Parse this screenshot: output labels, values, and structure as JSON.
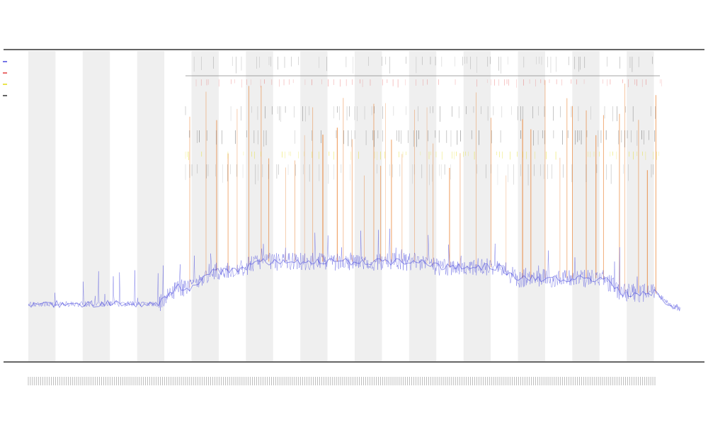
{
  "chart_data": {
    "type": "line",
    "title": "",
    "subtitle_lines": [
      "",
      ""
    ],
    "xlabel": "",
    "ylabel": "",
    "grid": false,
    "legend_position": "left",
    "shaded_bands": 12,
    "x_tick_count": 300,
    "colors": {
      "band": "#efefef",
      "primary_series": "#3a3adb",
      "event_lines": "#e8741c",
      "event_ticks_red": "#e03030",
      "event_ticks_yellow": "#e0d800",
      "event_ticks_black": "#222222",
      "axis": "#333333"
    },
    "series": [
      {
        "name": "",
        "kind": "profile",
        "segments": [
          {
            "from": 0,
            "to": 20,
            "level": 0.08
          },
          {
            "from": 20,
            "to": 25,
            "level": 0.17
          },
          {
            "from": 25,
            "to": 32,
            "level": 0.26
          },
          {
            "from": 32,
            "to": 60,
            "level": 0.31
          },
          {
            "from": 60,
            "to": 72,
            "level": 0.28
          },
          {
            "from": 72,
            "to": 88,
            "level": 0.22
          },
          {
            "from": 88,
            "to": 96,
            "level": 0.14
          },
          {
            "from": 96,
            "to": 100,
            "level": 0.06
          }
        ]
      }
    ]
  },
  "legend": {
    "items": [
      {
        "label": "",
        "color": "#3a3adb"
      },
      {
        "label": "",
        "color": "#e03030"
      },
      {
        "label": "",
        "color": "#e0d800"
      },
      {
        "label": "",
        "color": "#222222"
      }
    ]
  }
}
